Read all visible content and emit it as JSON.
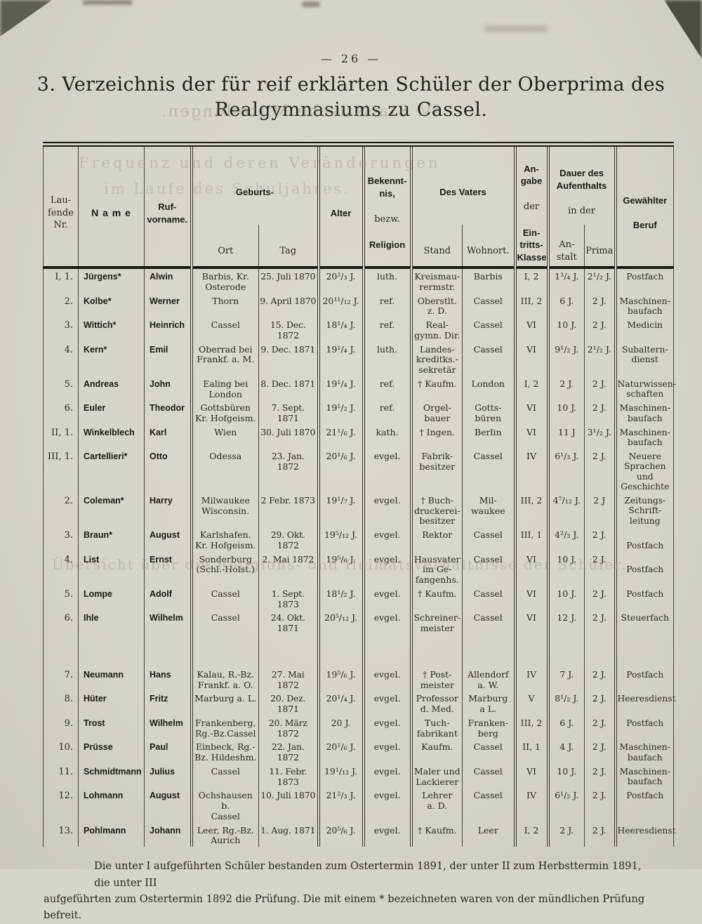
{
  "page": {
    "number": "—  26  —",
    "title_line1": "3. Verzeichnis der für reif erklärten Schüler der Oberprima des",
    "title_line2": "Realgymnasiums zu Cassel."
  },
  "bleedthrough": {
    "g1": "IV. Statistische Mitteilungen.",
    "g2": "Frequenz und deren Veränderungen",
    "g3": "im Laufe des Schuljahres.",
    "g4": "Übersicht über die Religions- und Heimatsverhältnisse der Schüler."
  },
  "table": {
    "header": {
      "nr": "Lau-\nfende\nNr.",
      "name": "N a m e",
      "vorname": "Ruf-\nvorname.",
      "geburts": "Geburts-",
      "ort": "Ort",
      "tag": "Tag",
      "alter": "Alter",
      "bekenntnis_1": "Bekennt-\nnis,",
      "bekenntnis_2": "bezw.",
      "bekenntnis_3": "Religion",
      "vaters": "Des Vaters",
      "stand": "Stand",
      "wohnort": "Wohnort.",
      "angabe_1": "An-\ngabe",
      "angabe_2": "der",
      "angabe_3": "Ein-\ntritts-\nKlasse",
      "dauer_1": "Dauer des\nAufenthalts",
      "dauer_2": "in der",
      "anstalt": "An-\nstalt",
      "prima": "Prima",
      "beruf": "Gewählter\n\nBeruf"
    },
    "columns": [
      "nr",
      "name",
      "vorname",
      "ort",
      "tag",
      "alter",
      "religion",
      "stand",
      "wohnort",
      "klasse",
      "anstalt",
      "prima",
      "beruf"
    ],
    "rows": [
      {
        "nr": "I, 1.",
        "name": "Jürgens*",
        "vorname": "Alwin",
        "ort": "Barbis, Kr.\nOsterode",
        "tag": "25. Juli 1870",
        "alter": "20²/₃ J.",
        "religion": "luth.",
        "stand": "Kreismau-\nrermstr.",
        "wohnort": "Barbis",
        "klasse": "I, 2",
        "anstalt": "1³/₄ J.",
        "prima": "2¹/₂ J.",
        "beruf": "Postfach"
      },
      {
        "nr": "2.",
        "name": "Kolbe*",
        "vorname": "Werner",
        "ort": "Thorn",
        "tag": "9. April 1870",
        "alter": "20¹¹/₁₂ J.",
        "religion": "ref.",
        "stand": "Oberstlt.\nz. D.",
        "wohnort": "Cassel",
        "klasse": "III, 2",
        "anstalt": "6 J.",
        "prima": "2 J.",
        "beruf": "Maschinen-\nbaufach"
      },
      {
        "nr": "3.",
        "name": "Wittich*",
        "vorname": "Heinrich",
        "ort": "Cassel",
        "tag": "15. Dec. 1872",
        "alter": "18¹/₄ J.",
        "religion": "ref.",
        "stand": "Real-\ngymn. Dir.",
        "wohnort": "Cassel",
        "klasse": "VI",
        "anstalt": "10 J.",
        "prima": "2 J.",
        "beruf": "Medicin"
      },
      {
        "nr": "4.",
        "name": "Kern*",
        "vorname": "Emil",
        "ort": "Oberrad bei\nFrankf. a. M.",
        "tag": "9. Dec. 1871",
        "alter": "19¹/₄ J.",
        "religion": "luth.",
        "stand": "Landes-\nkreditks.-\nsekretär",
        "wohnort": "Cassel",
        "klasse": "VI",
        "anstalt": "9¹/₂ J.",
        "prima": "2¹/₂ J.",
        "beruf": "Subaltern-\ndienst"
      },
      {
        "nr": "5.",
        "name": "Andreas",
        "vorname": "John",
        "ort": "Ealing bei\nLondon",
        "tag": "8. Dec. 1871",
        "alter": "19¹/₄ J.",
        "religion": "ref.",
        "stand": "† Kaufm.",
        "wohnort": "London",
        "klasse": "I, 2",
        "anstalt": "2 J.",
        "prima": "2 J.",
        "beruf": "Naturwissen-\nschaften"
      },
      {
        "nr": "6.",
        "name": "Euler",
        "vorname": "Theodor",
        "ort": "Gottsbüren\nKr. Hofgeism.",
        "tag": "7. Sept. 1871",
        "alter": "19¹/₂ J.",
        "religion": "ref.",
        "stand": "Orgel-\nbauer",
        "wohnort": "Gotts-\nbüren",
        "klasse": "VI",
        "anstalt": "10 J.",
        "prima": "2 J.",
        "beruf": "Maschinen-\nbaufach"
      },
      {
        "nr": "II, 1.",
        "name": "Winkelblech",
        "vorname": "Karl",
        "ort": "Wien",
        "tag": "30. Juli 1870",
        "alter": "21¹/₆ J.",
        "religion": "kath.",
        "stand": "† Ingen.",
        "wohnort": "Berlin",
        "klasse": "VI",
        "anstalt": "11 J",
        "prima": "3¹/₂ J.",
        "beruf": "Maschinen-\nbaufach"
      },
      {
        "nr": "III, 1.",
        "name": "Cartellieri*",
        "vorname": "Otto",
        "ort": "Odessa",
        "tag": "23. Jan. 1872",
        "alter": "20¹/₆ J.",
        "religion": "evgel.",
        "stand": "Fabrik-\nbesitzer",
        "wohnort": "Cassel",
        "klasse": "IV",
        "anstalt": "6¹/₃ J.",
        "prima": "2 J.",
        "beruf": "Neuere\nSprachen und\nGeschichte"
      },
      {
        "nr": "2.",
        "name": "Coleman*",
        "vorname": "Harry",
        "ort": "Milwaukee\nWisconsin.",
        "tag": "2 Febr. 1873",
        "alter": "19¹/₇ J.",
        "religion": "evgel.",
        "stand": "† Buch-\ndruckerei-\nbesitzer",
        "wohnort": "Mil-\nwaukee",
        "klasse": "III, 2",
        "anstalt": "4⁷/₁₂ J.",
        "prima": "2 J",
        "beruf": "Zeitungs-\nSchrift-\nleitung"
      },
      {
        "nr": "3.",
        "name": "Braun*",
        "vorname": "August",
        "ort": "Karlshafen.\nKr. Hofgeism.",
        "tag": "29. Okt. 1872",
        "alter": "19⁵/₁₂ J.",
        "religion": "evgel.",
        "stand": "Rektor",
        "wohnort": "Cassel",
        "klasse": "III, 1",
        "anstalt": "4²/₃ J.",
        "prima": "2 J.",
        "beruf": "\nPostfach"
      },
      {
        "nr": "4.",
        "name": "List",
        "vorname": "Ernst",
        "ort": "Sonderburg\n(Schl.-Holst.)",
        "tag": "2. Mai 1872",
        "alter": "19⁵/₆ J.",
        "religion": "evgel.",
        "stand": "Hausvater\nim Ge-\nfangenhs.",
        "wohnort": "Cassel",
        "klasse": "VI",
        "anstalt": "10 J.",
        "prima": "2 J.",
        "beruf": "\nPostfach"
      },
      {
        "nr": "5.",
        "name": "Lompe",
        "vorname": "Adolf",
        "ort": "Cassel",
        "tag": "1. Sept. 1873",
        "alter": "18¹/₂ J.",
        "religion": "evgel.",
        "stand": "† Kaufm.",
        "wohnort": "Cassel",
        "klasse": "VI",
        "anstalt": "10 J.",
        "prima": "2 J.",
        "beruf": "Postfach"
      },
      {
        "nr": "6.",
        "name": "Ihle",
        "vorname": "Wilhelm",
        "ort": "Cassel",
        "tag": "24. Okt. 1871",
        "alter": "20⁵/₁₂ J.",
        "religion": "evgel.",
        "stand": "Schreiner-\nmeister",
        "wohnort": "Cassel",
        "klasse": "VI",
        "anstalt": "12 J.",
        "prima": "2 J.",
        "beruf": "Steuerfach"
      },
      {
        "nr": "7.",
        "name": "Neumann",
        "vorname": "Hans",
        "ort": "Kalau, R.-Bz.\nFrankf. a. O.",
        "tag": "27. Mai 1872",
        "alter": "19⁵/₆ J.",
        "religion": "evgel.",
        "stand": "† Post-\nmeister",
        "wohnort": "Allendorf\na. W.",
        "klasse": "IV",
        "anstalt": "7 J.",
        "prima": "2 J.",
        "beruf": "Postfach",
        "gap": true
      },
      {
        "nr": "8.",
        "name": "Hüter",
        "vorname": "Fritz",
        "ort": "Marburg a. L.",
        "tag": "20. Dez. 1871",
        "alter": "20¹/₄ J.",
        "religion": "evgel.",
        "stand": "Professor\nd. Med.",
        "wohnort": "Marburg\na L.",
        "klasse": "V",
        "anstalt": "8¹/₂ J.",
        "prima": "2 J.",
        "beruf": "Heeresdienst"
      },
      {
        "nr": "9.",
        "name": "Trost",
        "vorname": "Wilhelm",
        "ort": "Frankenberg,\nRg.-Bz.Cassel",
        "tag": "20. März 1872",
        "alter": "20 J.",
        "religion": "evgel.",
        "stand": "Tuch-\nfabrikant",
        "wohnort": "Franken-\nberg",
        "klasse": "III, 2",
        "anstalt": "6 J.",
        "prima": "2 J.",
        "beruf": "Postfach"
      },
      {
        "nr": "10.",
        "name": "Prüsse",
        "vorname": "Paul",
        "ort": "Einbeck, Rg.-\nBz. Hildeshm.",
        "tag": "22. Jan. 1872",
        "alter": "20¹/₆ J.",
        "religion": "evgel.",
        "stand": "Kaufm.",
        "wohnort": "Cassel",
        "klasse": "II, 1",
        "anstalt": "4 J.",
        "prima": "2 J.",
        "beruf": "Maschinen-\nbaufach"
      },
      {
        "nr": "11.",
        "name": "Schmidtmann",
        "vorname": "Julius",
        "ort": "Cassel",
        "tag": "11. Febr. 1873",
        "alter": "19¹/₁₂ J.",
        "religion": "evgel.",
        "stand": "Maler und\nLackierer",
        "wohnort": "Cassel",
        "klasse": "VI",
        "anstalt": "10 J.",
        "prima": "2 J.",
        "beruf": "Maschinen-\nbaufach"
      },
      {
        "nr": "12.",
        "name": "Lohmann",
        "vorname": "August",
        "ort": "Ochshausen b.\nCassel",
        "tag": "10. Juli 1870",
        "alter": "21²/₃ J.",
        "religion": "evgel.",
        "stand": "Lehrer\na. D.",
        "wohnort": "Cassel",
        "klasse": "IV",
        "anstalt": "6¹/₂ J.",
        "prima": "2 J.",
        "beruf": "Postfach"
      },
      {
        "nr": "13.",
        "name": "Pohlmann",
        "vorname": "Johann",
        "ort": "Leer, Rg.-Bz.\nAurich",
        "tag": "1. Aug. 1871",
        "alter": "20⁵/₆ J.",
        "religion": "evgel.",
        "stand": "† Kaufm.",
        "wohnort": "Leer",
        "klasse": "I, 2",
        "anstalt": "2 J.",
        "prima": "2 J.",
        "beruf": "Heeresdienst"
      }
    ]
  },
  "footer": {
    "line1": "Die unter I aufgeführten Schüler  bestanden  zum  Ostertermin 1891, der unter II zum Herbsttermin 1891,  die unter III",
    "line2": "aufgeführten zum Ostertermin 1892 die Prüfung.  Die mit einem * bezeichneten waren von der mündlichen Prüfung befreit."
  }
}
